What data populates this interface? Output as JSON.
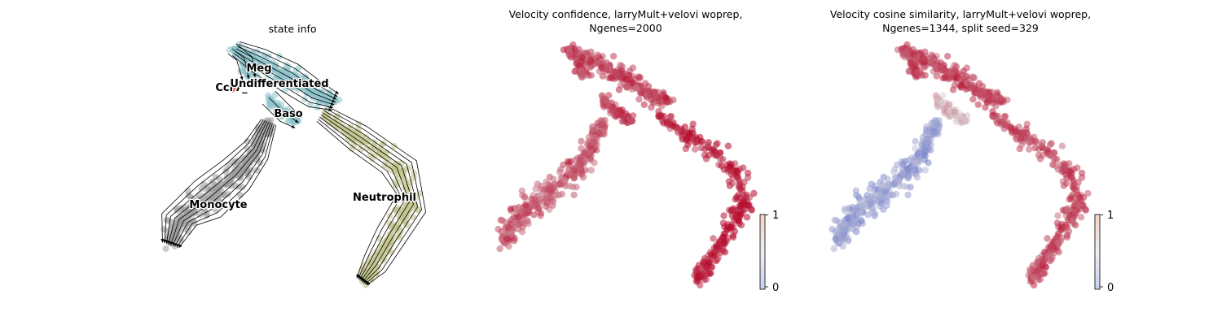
{
  "chart_data": [
    {
      "type": "scatter",
      "subtype": "umap-embedding-with-velocity-streamlines",
      "title": "state info",
      "axes_visible": false,
      "grid": false,
      "legend": "on data",
      "clusters": [
        {
          "name": "Undifferentiated",
          "color": "#8fc4cc"
        },
        {
          "name": "Meg",
          "color": "#8fc4cc"
        },
        {
          "name": "Baso",
          "color": "#8fc4cc"
        },
        {
          "name": "Ccr7_DC",
          "display_text": "Ccr7_",
          "color": "#e0604a"
        },
        {
          "name": "Monocyte",
          "color": "#9e9e9e"
        },
        {
          "name": "Neutrophil",
          "color": "#c2c48e"
        }
      ],
      "streamlines": {
        "color": "#000000",
        "arrows": true
      }
    },
    {
      "type": "scatter",
      "subtype": "umap-embedding-colored-by-value",
      "title_lines": [
        "Velocity confidence, larryMult+velovi woprep,",
        "Ngenes=2000"
      ],
      "axes_visible": false,
      "grid": false,
      "colorbar": {
        "colormap": "coolwarm",
        "min": 0,
        "max": 1,
        "ticks": [
          0,
          1
        ],
        "position": "right"
      },
      "value_summary": {
        "Undifferentiated": 0.85,
        "Meg": 0.85,
        "Baso": 0.88,
        "Monocyte": 0.8,
        "Neutrophil": 0.95
      }
    },
    {
      "type": "scatter",
      "subtype": "umap-embedding-colored-by-value",
      "title_lines": [
        "Velocity cosine similarity, larryMult+velovi woprep,",
        "Ngenes=1344, split seed=329"
      ],
      "axes_visible": false,
      "grid": false,
      "colorbar": {
        "colormap": "coolwarm",
        "min": 0,
        "max": 1,
        "ticks": [
          0,
          1
        ],
        "position": "right"
      },
      "value_summary": {
        "Undifferentiated": 0.85,
        "Meg": 0.85,
        "Baso": 0.6,
        "Monocyte": 0.3,
        "Neutrophil": 0.85
      }
    }
  ]
}
